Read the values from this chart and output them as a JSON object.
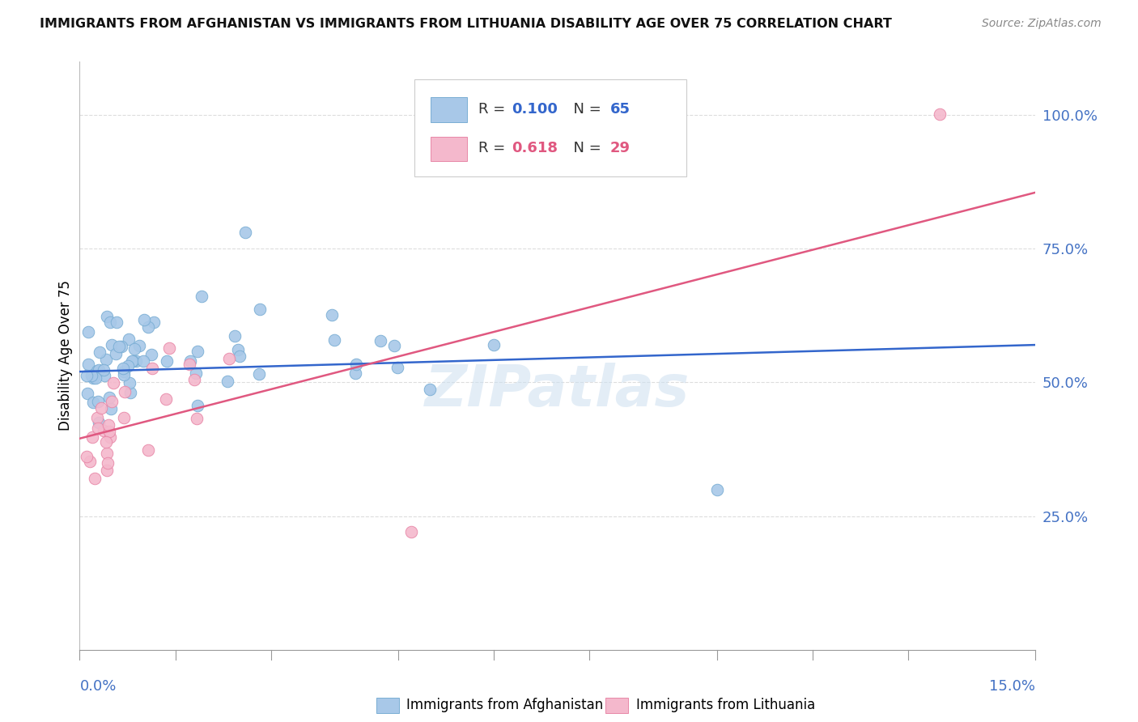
{
  "title": "IMMIGRANTS FROM AFGHANISTAN VS IMMIGRANTS FROM LITHUANIA DISABILITY AGE OVER 75 CORRELATION CHART",
  "source": "Source: ZipAtlas.com",
  "ylabel": "Disability Age Over 75",
  "xlim": [
    0.0,
    0.15
  ],
  "ylim": [
    0.0,
    1.1
  ],
  "yticks": [
    0.25,
    0.5,
    0.75,
    1.0
  ],
  "ytick_labels": [
    "25.0%",
    "50.0%",
    "75.0%",
    "100.0%"
  ],
  "bg_color": "#ffffff",
  "watermark": "ZIPatlas",
  "series1_color": "#a8c8e8",
  "series1_edge": "#7aaed4",
  "series2_color": "#f4b8cc",
  "series2_edge": "#e888a8",
  "line1_color": "#3366cc",
  "line2_color": "#e05880",
  "R1": "0.100",
  "N1": "65",
  "R2": "0.618",
  "N2": "29",
  "R1_color": "#3366cc",
  "R2_color": "#e05880",
  "legend_text_color": "#333333",
  "axis_label_color": "#4472c4",
  "title_color": "#111111",
  "source_color": "#888888",
  "grid_color": "#dddddd",
  "bottom_label1": "Immigrants from Afghanistan",
  "bottom_label2": "Immigrants from Lithuania"
}
